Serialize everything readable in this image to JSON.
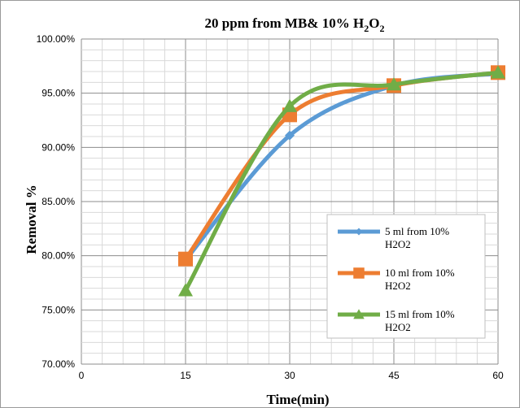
{
  "chart_data": {
    "type": "line",
    "title": "20 ppm from MB& 10% H2O2",
    "title_parts": {
      "main": "20 ppm from MB& 10% H",
      "sub1": "2",
      "mid": "O",
      "sub2": "2"
    },
    "xlabel": "Time(min)",
    "ylabel": "Removal %",
    "xlim": [
      0,
      60
    ],
    "ylim": [
      0.7,
      1.0
    ],
    "x_ticks": [
      0,
      15,
      30,
      45,
      60
    ],
    "x_tick_labels": [
      "0",
      "15",
      "30",
      "45",
      "60"
    ],
    "y_ticks": [
      0.7,
      0.75,
      0.8,
      0.85,
      0.9,
      0.95,
      1.0
    ],
    "y_tick_labels": [
      "70.00%",
      "75.00%",
      "80.00%",
      "85.00%",
      "90.00%",
      "95.00%",
      "100.00%"
    ],
    "grid": true,
    "legend_position": "right",
    "series": [
      {
        "name_line1": "5 ml from 10%",
        "name_line2": "H2O2",
        "color": "#5b9bd5",
        "marker": "diamond",
        "x": [
          15,
          30,
          45,
          60
        ],
        "y": [
          0.796,
          0.911,
          0.957,
          0.968
        ]
      },
      {
        "name_line1": "10 ml from 10%",
        "name_line2": "H2O2",
        "color": "#ed7d31",
        "marker": "square",
        "x": [
          15,
          30,
          45,
          60
        ],
        "y": [
          0.797,
          0.93,
          0.957,
          0.969
        ]
      },
      {
        "name_line1": "15 ml from 10%",
        "name_line2": "H2O2",
        "color": "#70ad47",
        "marker": "triangle",
        "x": [
          15,
          30,
          45,
          60
        ],
        "y": [
          0.768,
          0.938,
          0.958,
          0.969
        ]
      }
    ]
  }
}
